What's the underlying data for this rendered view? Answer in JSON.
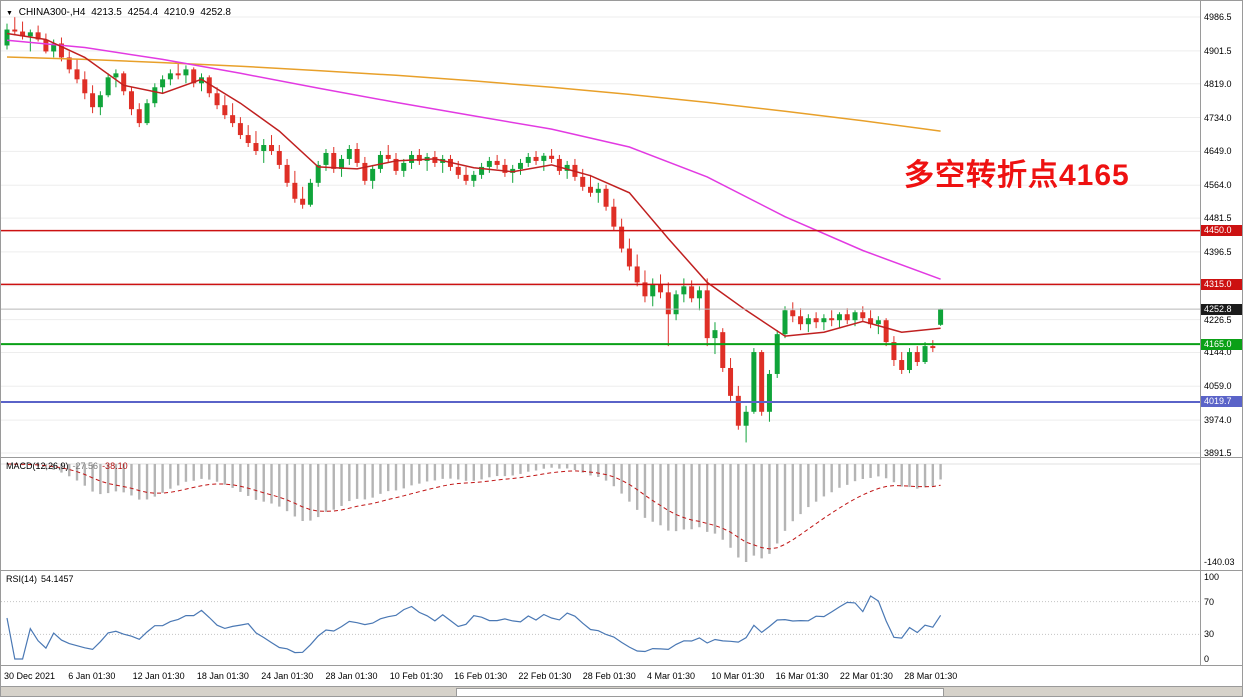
{
  "header": {
    "symbol": "CHINA300-,H4",
    "open": "4213.5",
    "high": "4254.4",
    "low": "4210.9",
    "close": "4252.8"
  },
  "annotation": {
    "text": "多空转折点4165",
    "color": "#ee1111"
  },
  "x_axis": {
    "labels": [
      "30 Dec 2021",
      "6 Jan 01:30",
      "12 Jan 01:30",
      "18 Jan 01:30",
      "24 Jan 01:30",
      "28 Jan 01:30",
      "10 Feb 01:30",
      "16 Feb 01:30",
      "22 Feb 01:30",
      "28 Feb 01:30",
      "4 Mar 01:30",
      "10 Mar 01:30",
      "16 Mar 01:30",
      "22 Mar 01:30",
      "28 Mar 01:30"
    ]
  },
  "chart_data": [
    {
      "type": "candlestick",
      "title": "CHINA300- H4",
      "y_axis": {
        "max": 4986.5,
        "min": 3891.5,
        "ticks": [
          "4986.5",
          "4901.5",
          "4819.0",
          "4734.0",
          "4649.0",
          "4564.0",
          "4481.5",
          "4396.5",
          "4311.5",
          "4226.5",
          "4144.0",
          "4059.0",
          "3974.0",
          "3891.5"
        ]
      },
      "colors": {
        "bull": "#10a43a",
        "bear": "#df2f26"
      },
      "current_price": 4252.8,
      "current_price_label": "4252.8",
      "h_lines": [
        {
          "value": 4450.0,
          "label": "4450.0",
          "color": "#cc1111",
          "width": 1.4,
          "name": "resistance-line-4450"
        },
        {
          "value": 4315.0,
          "label": "4315.0",
          "color": "#cc1111",
          "width": 1.4,
          "name": "resistance-line-4315"
        },
        {
          "value": 4165.0,
          "label": "4165.0",
          "color": "#0aa016",
          "width": 2,
          "name": "support-line-4165"
        },
        {
          "value": 4019.7,
          "label": "4019.7",
          "color": "#5a63c8",
          "width": 2,
          "name": "support-line-4019"
        }
      ],
      "ma_lines": [
        {
          "name": "ma-slow-orange",
          "color": "#e8a02a",
          "points": [
            [
              0,
              4886
            ],
            [
              10,
              4880
            ],
            [
              20,
              4872
            ],
            [
              30,
              4863
            ],
            [
              40,
              4852
            ],
            [
              50,
              4840
            ],
            [
              60,
              4826
            ],
            [
              70,
              4810
            ],
            [
              80,
              4792
            ],
            [
              90,
              4772
            ],
            [
              100,
              4750
            ],
            [
              110,
              4726
            ],
            [
              120,
              4700
            ]
          ]
        },
        {
          "name": "ma-medium-magenta",
          "color": "#e23ae2",
          "points": [
            [
              0,
              4928
            ],
            [
              10,
              4910
            ],
            [
              20,
              4880
            ],
            [
              30,
              4845
            ],
            [
              40,
              4808
            ],
            [
              50,
              4772
            ],
            [
              60,
              4738
            ],
            [
              70,
              4705
            ],
            [
              80,
              4660
            ],
            [
              90,
              4585
            ],
            [
              100,
              4485
            ],
            [
              110,
              4400
            ],
            [
              120,
              4328
            ]
          ]
        },
        {
          "name": "ma-fast-red",
          "color": "#c02020",
          "points": [
            [
              0,
              4945
            ],
            [
              5,
              4930
            ],
            [
              10,
              4885
            ],
            [
              15,
              4815
            ],
            [
              20,
              4795
            ],
            [
              25,
              4830
            ],
            [
              30,
              4770
            ],
            [
              35,
              4700
            ],
            [
              40,
              4610
            ],
            [
              45,
              4605
            ],
            [
              50,
              4625
            ],
            [
              55,
              4630
            ],
            [
              60,
              4608
            ],
            [
              65,
              4598
            ],
            [
              70,
              4615
            ],
            [
              75,
              4588
            ],
            [
              80,
              4545
            ],
            [
              85,
              4430
            ],
            [
              90,
              4320
            ],
            [
              95,
              4250
            ],
            [
              100,
              4185
            ],
            [
              105,
              4195
            ],
            [
              110,
              4222
            ],
            [
              115,
              4195
            ],
            [
              120,
              4205
            ]
          ]
        }
      ],
      "candles": [
        [
          4915,
          4970,
          4905,
          4955
        ],
        [
          4955,
          4986,
          4940,
          4950
        ],
        [
          4950,
          4975,
          4930,
          4938
        ],
        [
          4938,
          4955,
          4900,
          4948
        ],
        [
          4948,
          4965,
          4925,
          4930
        ],
        [
          4930,
          4945,
          4895,
          4900
        ],
        [
          4900,
          4930,
          4885,
          4920
        ],
        [
          4920,
          4935,
          4875,
          4885
        ],
        [
          4885,
          4900,
          4845,
          4855
        ],
        [
          4855,
          4880,
          4820,
          4830
        ],
        [
          4830,
          4850,
          4780,
          4795
        ],
        [
          4795,
          4815,
          4745,
          4760
        ],
        [
          4760,
          4800,
          4740,
          4790
        ],
        [
          4790,
          4845,
          4785,
          4835
        ],
        [
          4835,
          4855,
          4810,
          4845
        ],
        [
          4845,
          4850,
          4790,
          4800
        ],
        [
          4800,
          4810,
          4740,
          4755
        ],
        [
          4755,
          4770,
          4710,
          4720
        ],
        [
          4720,
          4780,
          4715,
          4770
        ],
        [
          4770,
          4820,
          4760,
          4810
        ],
        [
          4810,
          4840,
          4795,
          4830
        ],
        [
          4830,
          4855,
          4815,
          4845
        ],
        [
          4845,
          4870,
          4830,
          4840
        ],
        [
          4840,
          4865,
          4820,
          4855
        ],
        [
          4855,
          4860,
          4810,
          4820
        ],
        [
          4820,
          4845,
          4800,
          4835
        ],
        [
          4835,
          4840,
          4785,
          4795
        ],
        [
          4795,
          4810,
          4755,
          4765
        ],
        [
          4765,
          4790,
          4730,
          4740
        ],
        [
          4740,
          4770,
          4710,
          4720
        ],
        [
          4720,
          4735,
          4680,
          4690
        ],
        [
          4690,
          4715,
          4660,
          4670
        ],
        [
          4670,
          4700,
          4640,
          4650
        ],
        [
          4650,
          4680,
          4620,
          4665
        ],
        [
          4665,
          4690,
          4640,
          4650
        ],
        [
          4650,
          4665,
          4605,
          4615
        ],
        [
          4615,
          4630,
          4560,
          4570
        ],
        [
          4570,
          4600,
          4520,
          4530
        ],
        [
          4530,
          4560,
          4505,
          4515
        ],
        [
          4515,
          4580,
          4510,
          4570
        ],
        [
          4570,
          4625,
          4560,
          4615
        ],
        [
          4615,
          4655,
          4600,
          4645
        ],
        [
          4645,
          4660,
          4595,
          4605
        ],
        [
          4605,
          4640,
          4585,
          4630
        ],
        [
          4630,
          4665,
          4615,
          4655
        ],
        [
          4655,
          4670,
          4610,
          4620
        ],
        [
          4620,
          4635,
          4565,
          4575
        ],
        [
          4575,
          4615,
          4555,
          4605
        ],
        [
          4605,
          4650,
          4595,
          4640
        ],
        [
          4640,
          4665,
          4620,
          4630
        ],
        [
          4630,
          4645,
          4590,
          4600
        ],
        [
          4600,
          4630,
          4585,
          4620
        ],
        [
          4620,
          4650,
          4605,
          4640
        ],
        [
          4640,
          4655,
          4615,
          4625
        ],
        [
          4625,
          4645,
          4600,
          4635
        ],
        [
          4635,
          4650,
          4610,
          4620
        ],
        [
          4620,
          4640,
          4595,
          4630
        ],
        [
          4630,
          4640,
          4600,
          4610
        ],
        [
          4610,
          4625,
          4580,
          4590
        ],
        [
          4590,
          4610,
          4565,
          4575
        ],
        [
          4575,
          4600,
          4560,
          4590
        ],
        [
          4590,
          4620,
          4580,
          4610
        ],
        [
          4610,
          4635,
          4595,
          4625
        ],
        [
          4625,
          4640,
          4605,
          4615
        ],
        [
          4615,
          4630,
          4585,
          4595
        ],
        [
          4595,
          4615,
          4570,
          4605
        ],
        [
          4605,
          4630,
          4590,
          4620
        ],
        [
          4620,
          4645,
          4610,
          4635
        ],
        [
          4635,
          4650,
          4615,
          4625
        ],
        [
          4625,
          4645,
          4600,
          4638
        ],
        [
          4638,
          4655,
          4620,
          4630
        ],
        [
          4630,
          4640,
          4590,
          4600
        ],
        [
          4600,
          4625,
          4580,
          4615
        ],
        [
          4615,
          4630,
          4575,
          4585
        ],
        [
          4585,
          4605,
          4550,
          4560
        ],
        [
          4560,
          4590,
          4535,
          4545
        ],
        [
          4545,
          4570,
          4520,
          4555
        ],
        [
          4555,
          4565,
          4500,
          4510
        ],
        [
          4510,
          4530,
          4450,
          4460
        ],
        [
          4460,
          4480,
          4395,
          4405
        ],
        [
          4405,
          4430,
          4350,
          4360
        ],
        [
          4360,
          4390,
          4310,
          4320
        ],
        [
          4320,
          4350,
          4270,
          4285
        ],
        [
          4285,
          4330,
          4260,
          4315
        ],
        [
          4315,
          4340,
          4280,
          4295
        ],
        [
          4295,
          4320,
          4160,
          4240
        ],
        [
          4240,
          4300,
          4225,
          4290
        ],
        [
          4290,
          4330,
          4270,
          4310
        ],
        [
          4310,
          4325,
          4270,
          4280
        ],
        [
          4280,
          4310,
          4250,
          4300
        ],
        [
          4300,
          4330,
          4160,
          4180
        ],
        [
          4180,
          4220,
          4140,
          4200
        ],
        [
          4195,
          4205,
          4095,
          4105
        ],
        [
          4105,
          4130,
          4020,
          4035
        ],
        [
          4035,
          4060,
          3950,
          3960
        ],
        [
          3960,
          4010,
          3918,
          3995
        ],
        [
          3995,
          4155,
          3990,
          4145
        ],
        [
          4145,
          4150,
          3985,
          3995
        ],
        [
          3995,
          4100,
          3970,
          4090
        ],
        [
          4090,
          4200,
          4080,
          4190
        ],
        [
          4190,
          4260,
          4180,
          4250
        ],
        [
          4250,
          4270,
          4220,
          4235
        ],
        [
          4235,
          4255,
          4200,
          4215
        ],
        [
          4215,
          4240,
          4195,
          4230
        ],
        [
          4230,
          4245,
          4205,
          4220
        ],
        [
          4220,
          4240,
          4200,
          4230
        ],
        [
          4230,
          4250,
          4210,
          4225
        ],
        [
          4225,
          4245,
          4205,
          4240
        ],
        [
          4240,
          4255,
          4215,
          4225
        ],
        [
          4225,
          4250,
          4210,
          4245
        ],
        [
          4245,
          4260,
          4220,
          4230
        ],
        [
          4230,
          4250,
          4205,
          4215
        ],
        [
          4215,
          4235,
          4190,
          4225
        ],
        [
          4225,
          4230,
          4160,
          4170
        ],
        [
          4170,
          4185,
          4110,
          4125
        ],
        [
          4125,
          4145,
          4090,
          4100
        ],
        [
          4100,
          4155,
          4092,
          4145
        ],
        [
          4145,
          4160,
          4110,
          4120
        ],
        [
          4120,
          4170,
          4115,
          4160
        ],
        [
          4160,
          4175,
          4145,
          4155
        ],
        [
          4213.5,
          4254.4,
          4210.9,
          4252.8
        ]
      ]
    },
    {
      "type": "bar",
      "name": "MACD",
      "label": "MACD(12,26,9)",
      "value_macd": "-27.56",
      "value_signal": "-38.10",
      "params": {
        "fast": 12,
        "slow": 26,
        "signal": 9
      },
      "axis_labels": [
        "-140.03"
      ],
      "colors": {
        "histogram": "#b4b4b4",
        "signal": "#c01414"
      }
    },
    {
      "type": "line",
      "name": "RSI",
      "label": "RSI(14)",
      "value": "54.1457",
      "period": 14,
      "levels": [
        70,
        30
      ],
      "axis_labels": [
        "100",
        "70",
        "30",
        "0"
      ],
      "color": "#4a78b4"
    }
  ]
}
